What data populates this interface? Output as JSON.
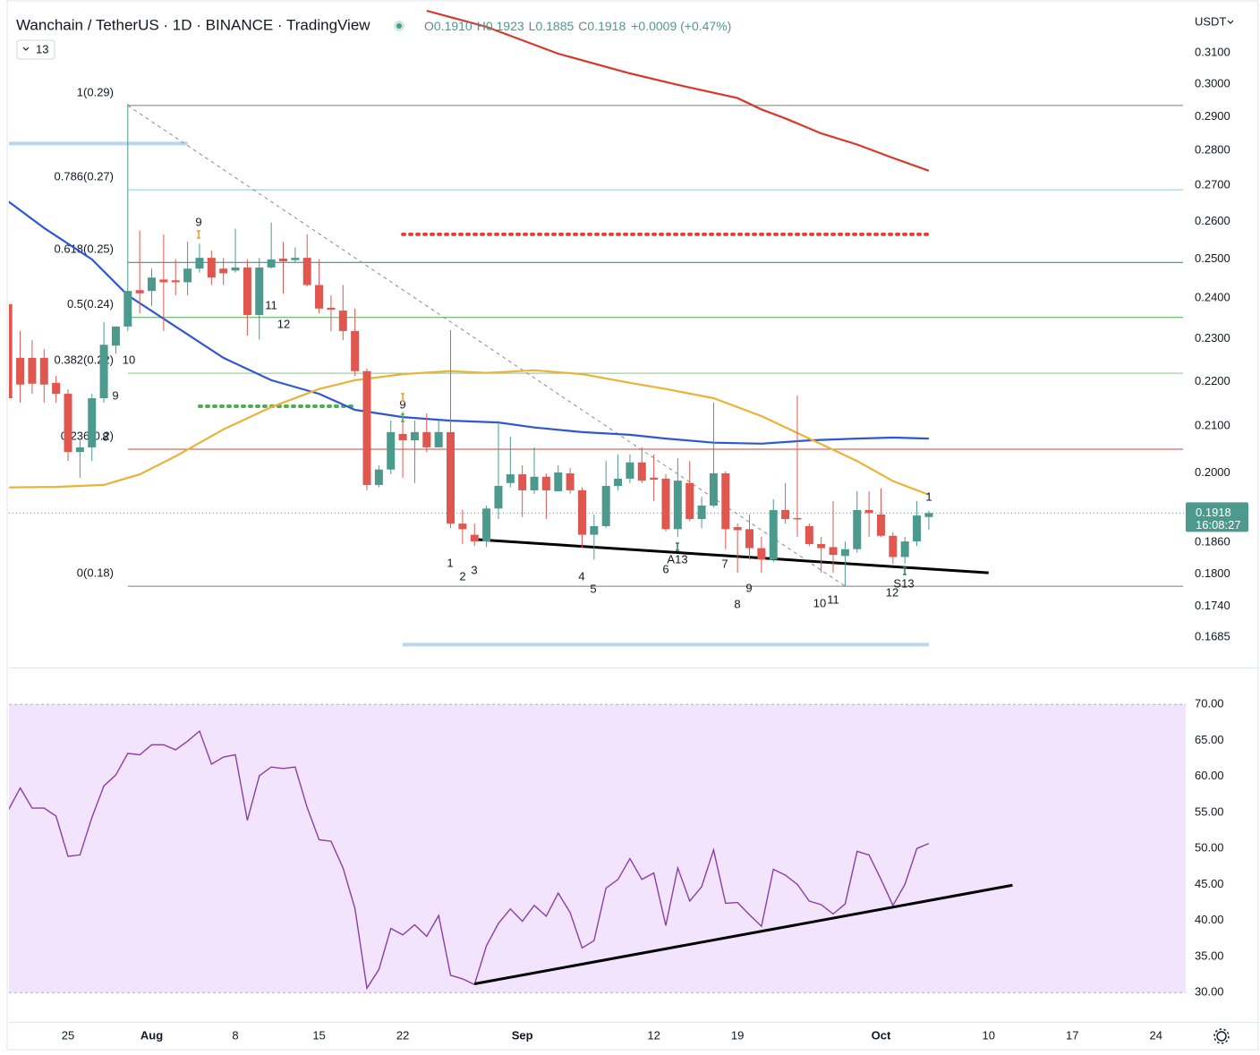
{
  "header": {
    "title": "Wanchain / TetherUS · 1D · BINANCE · TradingView",
    "ohlc": [
      {
        "label": "O",
        "value": "0.1910"
      },
      {
        "label": "H",
        "value": "0.1923"
      },
      {
        "label": "L",
        "value": "0.1885"
      },
      {
        "label": "C",
        "value": "0.1918"
      }
    ],
    "change": "+0.0009 (+0.47%)",
    "badge": "13",
    "currency": "USDT"
  },
  "price_tag": {
    "price": "0.1918",
    "countdown": "16:08:27",
    "color": "#4c9a8e"
  },
  "chart_data": [
    {
      "type": "candlestick",
      "yscale": "log",
      "ylim": [
        0.1634,
        0.3245
      ],
      "yticks": [
        {
          "value": 0.31,
          "label": "0.3100"
        },
        {
          "value": 0.3,
          "label": "0.3000"
        },
        {
          "value": 0.29,
          "label": "0.2900"
        },
        {
          "value": 0.28,
          "label": "0.2800"
        },
        {
          "value": 0.27,
          "label": "0.2700"
        },
        {
          "value": 0.26,
          "label": "0.2600"
        },
        {
          "value": 0.25,
          "label": "0.2500"
        },
        {
          "value": 0.24,
          "label": "0.2400"
        },
        {
          "value": 0.23,
          "label": "0.2300"
        },
        {
          "value": 0.22,
          "label": "0.2200"
        },
        {
          "value": 0.21,
          "label": "0.2100"
        },
        {
          "value": 0.2,
          "label": "0.2000"
        },
        {
          "value": 0.186,
          "label": "0.1860"
        },
        {
          "value": 0.18,
          "label": "0.1800"
        },
        {
          "value": 0.174,
          "label": "0.1740"
        },
        {
          "value": 0.1685,
          "label": "0.1685"
        }
      ],
      "up_color": "#4c9a8e",
      "down_color": "#e0574f",
      "open": [
        0.2385,
        0.2255,
        0.2255,
        0.2255,
        0.2197,
        0.2172,
        0.2044,
        0.2054,
        0.2162,
        0.2284,
        0.233,
        0.242,
        0.2418,
        0.2447,
        0.2445,
        0.244,
        0.2475,
        0.2503,
        0.2475,
        0.247,
        0.2478,
        0.2358,
        0.2478,
        0.2501,
        0.2497,
        0.2503,
        0.2433,
        0.2376,
        0.2369,
        0.2319,
        0.2224,
        0.1975,
        0.2007,
        0.2083,
        0.2069,
        0.2087,
        0.2054,
        0.2087,
        0.1897,
        0.1875,
        0.1862,
        0.1927,
        0.1979,
        0.1997,
        0.1964,
        0.1992,
        0.1962,
        0.1999,
        0.1964,
        0.1875,
        0.1892,
        0.1973,
        0.1988,
        0.2022,
        0.199,
        0.1988,
        0.1886,
        0.1979,
        0.1906,
        0.1933,
        0.1999,
        0.189,
        0.1886,
        0.1849,
        0.1827,
        0.1924,
        0.1908,
        0.1892,
        0.1857,
        0.1851,
        0.1834,
        0.1847,
        0.1924,
        0.1915,
        0.1873,
        0.1832,
        0.1862,
        0.191,
        null,
        null,
        null,
        null,
        null,
        null,
        null,
        null,
        null,
        null,
        null,
        null,
        null,
        null,
        null,
        null,
        null,
        null,
        null,
        null,
        null
      ],
      "high": [
        0.2429,
        0.2319,
        0.2297,
        0.2276,
        0.2213,
        0.2182,
        0.2073,
        0.2172,
        0.2341,
        0.233,
        0.294,
        0.2575,
        0.2475,
        0.2565,
        0.2499,
        0.2545,
        0.254,
        0.2522,
        0.2503,
        0.258,
        0.2499,
        0.2503,
        0.2597,
        0.2545,
        0.253,
        0.2565,
        0.2499,
        0.2407,
        0.2433,
        0.2374,
        0.223,
        0.2016,
        0.2112,
        0.2132,
        0.2112,
        0.2128,
        0.2112,
        0.2321,
        0.1924,
        0.1897,
        0.1933,
        0.2112,
        0.2077,
        0.2016,
        0.2054,
        0.1999,
        0.2016,
        0.201,
        0.197,
        0.1915,
        0.2025,
        0.2039,
        0.2039,
        0.2054,
        0.2039,
        0.1997,
        0.2031,
        0.2025,
        0.1951,
        0.2152,
        0.2003,
        0.1897,
        0.1915,
        0.1871,
        0.1946,
        0.1979,
        0.2168,
        0.1897,
        0.1871,
        0.1942,
        0.1862,
        0.1962,
        0.1962,
        0.1968,
        0.188,
        0.1871,
        0.1942,
        0.1923,
        null,
        null,
        null,
        null,
        null,
        null,
        null,
        null,
        null,
        null,
        null,
        null,
        null,
        null,
        null,
        null,
        null,
        null,
        null,
        null,
        null
      ],
      "low": [
        0.2132,
        0.2152,
        0.2172,
        0.2152,
        0.2152,
        0.2025,
        0.199,
        0.2025,
        0.2152,
        0.2265,
        0.2319,
        0.2362,
        0.238,
        0.2319,
        0.2407,
        0.2407,
        0.2465,
        0.2433,
        0.2433,
        0.2465,
        0.2308,
        0.2299,
        0.2475,
        0.2411,
        0.249,
        0.2429,
        0.2362,
        0.2319,
        0.2297,
        0.2213,
        0.1964,
        0.197,
        0.1997,
        0.199,
        0.1979,
        0.2044,
        0.2054,
        0.1888,
        0.1857,
        0.1853,
        0.1851,
        0.1906,
        0.197,
        0.191,
        0.1957,
        0.1906,
        0.1962,
        0.1957,
        0.1849,
        0.1827,
        0.1888,
        0.1964,
        0.1979,
        0.1979,
        0.1942,
        0.1882,
        0.1871,
        0.1902,
        0.1888,
        0.1929,
        0.1847,
        0.1802,
        0.1827,
        0.1802,
        0.1822,
        0.1897,
        0.1871,
        0.1853,
        0.1802,
        0.1802,
        0.1777,
        0.184,
        0.1871,
        0.1871,
        0.1819,
        0.1819,
        0.1853,
        0.1885,
        null,
        null,
        null,
        null,
        null,
        null,
        null,
        null,
        null,
        null,
        null,
        null,
        null,
        null,
        null,
        null,
        null,
        null,
        null,
        null,
        null
      ],
      "close": [
        0.2162,
        0.2193,
        0.2195,
        0.2193,
        0.2172,
        0.2044,
        0.2054,
        0.2162,
        0.2286,
        0.233,
        0.2418,
        0.2412,
        0.2452,
        0.244,
        0.244,
        0.2475,
        0.2503,
        0.2452,
        0.2463,
        0.2478,
        0.2358,
        0.2478,
        0.2499,
        0.2494,
        0.2503,
        0.2433,
        0.2374,
        0.2371,
        0.2319,
        0.2224,
        0.1975,
        0.2007,
        0.2087,
        0.2069,
        0.2087,
        0.2054,
        0.2087,
        0.1897,
        0.1886,
        0.1862,
        0.1927,
        0.1973,
        0.1997,
        0.1964,
        0.1992,
        0.1964,
        0.2001,
        0.1964,
        0.1875,
        0.1892,
        0.1973,
        0.1988,
        0.2022,
        0.1984,
        0.1986,
        0.1886,
        0.1984,
        0.1906,
        0.1933,
        0.1999,
        0.1886,
        0.1884,
        0.1849,
        0.1827,
        0.1924,
        0.1906,
        0.1906,
        0.1857,
        0.1849,
        0.1836,
        0.1847,
        0.1924,
        0.1918,
        0.1873,
        0.1832,
        0.1862,
        0.1913,
        0.1918,
        null,
        null,
        null,
        null,
        null,
        null,
        null,
        null,
        null,
        null,
        null,
        null,
        null,
        null,
        null,
        null,
        null,
        null,
        null,
        null,
        null
      ],
      "moving_averages": [
        {
          "color": "#d9372b",
          "x": [
            35,
            40,
            46,
            52,
            56,
            61,
            63,
            65,
            68,
            71,
            74,
            77
          ],
          "values": [
            0.3239,
            0.3185,
            0.3097,
            0.3034,
            0.2998,
            0.2957,
            0.2922,
            0.2895,
            0.285,
            0.2817,
            0.2778,
            0.2741
          ]
        },
        {
          "color": "#2f56d6",
          "x": [
            0,
            3,
            7,
            10,
            14,
            18,
            22,
            26,
            29,
            33,
            37,
            41,
            44,
            48,
            52,
            55,
            59,
            63,
            67,
            71,
            74,
            77
          ],
          "values": [
            0.2655,
            0.2582,
            0.2499,
            0.2407,
            0.233,
            0.2255,
            0.2203,
            0.2172,
            0.2136,
            0.212,
            0.2112,
            0.2108,
            0.2097,
            0.2087,
            0.2081,
            0.2073,
            0.2064,
            0.2062,
            0.2069,
            0.2073,
            0.2075,
            0.2073
          ]
        },
        {
          "color": "#ebb236",
          "x": [
            0,
            4,
            8,
            11,
            14,
            18,
            22,
            26,
            29,
            33,
            37,
            40,
            44,
            48,
            52,
            55,
            59,
            63,
            67,
            71,
            74,
            77
          ],
          "values": [
            0.197,
            0.1971,
            0.1975,
            0.1997,
            0.2035,
            0.2093,
            0.2142,
            0.2183,
            0.2203,
            0.2217,
            0.2224,
            0.222,
            0.2226,
            0.2217,
            0.2197,
            0.2183,
            0.2162,
            0.2122,
            0.2073,
            0.2025,
            0.1983,
            0.1955
          ]
        }
      ],
      "fib_levels": [
        {
          "label": "1(0.29)",
          "value": 0.2934,
          "color": "#787b86",
          "text_color": "#6a6d78"
        },
        {
          "label": "0.786(0.27)",
          "value": 0.2687,
          "color": "#90bff9",
          "text_color": "#64a0dc"
        },
        {
          "label": "0.618(0.25)",
          "value": 0.2491,
          "color": "#2a7f7f",
          "text_color": "#2a7f7f"
        },
        {
          "label": "0.5(0.24)",
          "value": 0.2352,
          "color": "#4caf50",
          "text_color": "#4caf50"
        },
        {
          "label": "0.382(0.22)",
          "value": 0.2219,
          "color": "#81c784",
          "text_color": "#6fb86f"
        },
        {
          "label": "0.236(0.2)",
          "value": 0.205,
          "color": "#d2433a",
          "text_color": "#e06a5f"
        },
        {
          "label": "0(0.18)",
          "value": 0.1777,
          "color": "#787b86",
          "text_color": "#6a6d78"
        }
      ],
      "lines": [
        {
          "color": "#b8d6f0",
          "style": "solid",
          "width": 4,
          "x": [
            0,
            15
          ],
          "values": [
            0.282,
            0.282
          ]
        },
        {
          "color": "#b8d6f0",
          "style": "solid",
          "width": 4,
          "x": [
            33,
            77
          ],
          "values": [
            0.1672,
            0.1672
          ]
        },
        {
          "color": "#e0453a",
          "style": "dotted",
          "width": 4,
          "x": [
            33,
            77
          ],
          "values": [
            0.2565,
            0.2565
          ]
        },
        {
          "color": "#4caf50",
          "style": "dotted",
          "width": 4,
          "x": [
            16,
            29
          ],
          "values": [
            0.2144,
            0.2144
          ]
        },
        {
          "color": "#8a8a8a",
          "style": "dashed",
          "width": 1,
          "x": [
            10,
            70
          ],
          "values": [
            0.2934,
            0.1777
          ]
        },
        {
          "color": "#000000",
          "style": "solid",
          "width": 3,
          "x": [
            39,
            82
          ],
          "values": [
            0.1866,
            0.1802
          ]
        }
      ],
      "annotations": [
        "9",
        "11",
        "12",
        "10",
        "9",
        "8",
        "9",
        "1",
        "2",
        "3",
        "4",
        "5",
        "A13",
        "6",
        "7",
        "8",
        "9",
        "10",
        "11",
        "12",
        "S13",
        "1"
      ]
    },
    {
      "type": "line",
      "ylim": [
        25.8,
        74
      ],
      "yticks": [
        {
          "value": 70,
          "label": "70.00"
        },
        {
          "value": 65,
          "label": "65.00"
        },
        {
          "value": 60,
          "label": "60.00"
        },
        {
          "value": 55,
          "label": "55.00"
        },
        {
          "value": 50,
          "label": "50.00"
        },
        {
          "value": 45,
          "label": "45.00"
        },
        {
          "value": 40,
          "label": "40.00"
        },
        {
          "value": 35,
          "label": "35.00"
        },
        {
          "value": 30,
          "label": "30.00"
        }
      ],
      "band": [
        30,
        70
      ],
      "band_color": "#f2e4fc",
      "categories": [
        null,
        null,
        null,
        null,
        null,
        "25",
        null,
        null,
        null,
        null,
        null,
        null,
        "Aug",
        null,
        null,
        null,
        null,
        null,
        null,
        "8",
        null,
        null,
        null,
        null,
        null,
        null,
        "15",
        null,
        null,
        null,
        null,
        null,
        null,
        "22",
        null,
        null,
        null,
        null,
        null,
        null,
        null,
        null,
        null,
        "Sep",
        null,
        null,
        null,
        null,
        null,
        null,
        null,
        null,
        null,
        null,
        "12",
        null,
        null,
        null,
        null,
        null,
        null,
        "19",
        null,
        null,
        null,
        null,
        null,
        null,
        null,
        null,
        null,
        null,
        null,
        "Oct",
        null,
        null,
        null,
        null,
        null,
        null,
        null,
        null,
        "10",
        null,
        null,
        null,
        null,
        null,
        null,
        "17",
        null,
        null,
        null,
        null,
        null,
        null,
        "24",
        null,
        null
      ],
      "series": [
        {
          "color": "#8b3fa6",
          "values": [
            55.3,
            58.4,
            55.6,
            55.6,
            54.5,
            48.9,
            49.1,
            54.3,
            58.7,
            60.2,
            63.2,
            63.0,
            64.4,
            64.4,
            63.7,
            64.9,
            66.3,
            61.7,
            62.7,
            63.0,
            53.9,
            60.1,
            61.3,
            61.1,
            61.3,
            55.7,
            51.2,
            51.0,
            47.3,
            41.7,
            30.6,
            33.2,
            38.9,
            38.0,
            39.4,
            37.8,
            40.7,
            32.4,
            31.9,
            31.1,
            36.5,
            39.6,
            41.6,
            39.9,
            42.1,
            40.6,
            43.8,
            41.1,
            36.2,
            37.2,
            44.5,
            45.7,
            48.6,
            45.7,
            46.6,
            39.3,
            47.3,
            42.7,
            44.7,
            49.8,
            42.4,
            42.5,
            40.8,
            39.2,
            47.1,
            46.3,
            45.0,
            42.7,
            42.2,
            40.9,
            42.3,
            49.6,
            49.1,
            45.7,
            42.1,
            45.0,
            50.0,
            50.7,
            null,
            null,
            null,
            null,
            null,
            null,
            null,
            null,
            null,
            null,
            null,
            null,
            null,
            null,
            null,
            null,
            null,
            null,
            null,
            null,
            null
          ]
        }
      ],
      "lines": [
        {
          "color": "#000000",
          "style": "solid",
          "width": 3,
          "x": [
            39,
            84
          ],
          "values": [
            31.2,
            44.9
          ]
        }
      ]
    }
  ]
}
